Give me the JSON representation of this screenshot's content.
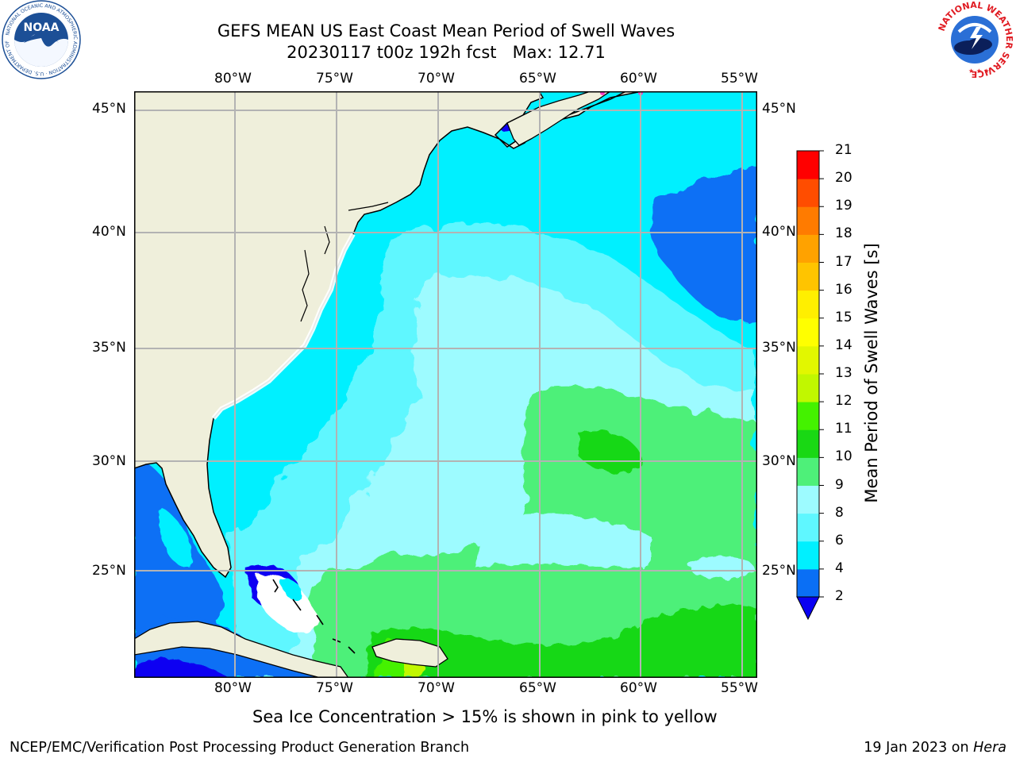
{
  "title": {
    "line1": "GEFS MEAN US East Coast Mean Period of Swell Waves",
    "line2": "20230117 t00z 192h fcst   Max: 12.71"
  },
  "map": {
    "lon_labels": [
      "80°W",
      "75°W",
      "70°W",
      "65°W",
      "60°W",
      "55°W"
    ],
    "lat_labels": [
      "45°N",
      "40°N",
      "35°N",
      "30°N",
      "25°N"
    ]
  },
  "colorbar": {
    "label": "Mean Period of Swell Waves [s]",
    "ticks": [
      "2",
      "4",
      "6",
      "8",
      "9",
      "10",
      "11",
      "12",
      "13",
      "14",
      "15",
      "16",
      "17",
      "18",
      "19",
      "20",
      "21"
    ],
    "colors": [
      "#0a6ff5",
      "#00f0ff",
      "#5ff7ff",
      "#9dfbff",
      "#4ef079",
      "#19d814",
      "#44f200",
      "#c1f700",
      "#e2f700",
      "#ffff00",
      "#ffef00",
      "#ffc400",
      "#ffa200",
      "#ff7b00",
      "#ff4d00",
      "#ff0000"
    ],
    "under_color": "#0a00f2"
  },
  "note": "Sea Ice Concentration > 15% is shown in pink to yellow",
  "footer": {
    "left": "NCEP/EMC/Verification Post Processing Product Generation Branch",
    "right_date": "19 Jan 2023 on ",
    "right_machine": "Hera"
  },
  "logos": {
    "noaa_text": "NOAA",
    "noaa_ring": "NATIONAL OCEANIC AND ATMOSPHERIC ADMINISTRATION · U.S. DEPARTMENT OF COMMERCE",
    "nws_ring": "NATIONAL WEATHER SERVICE"
  }
}
